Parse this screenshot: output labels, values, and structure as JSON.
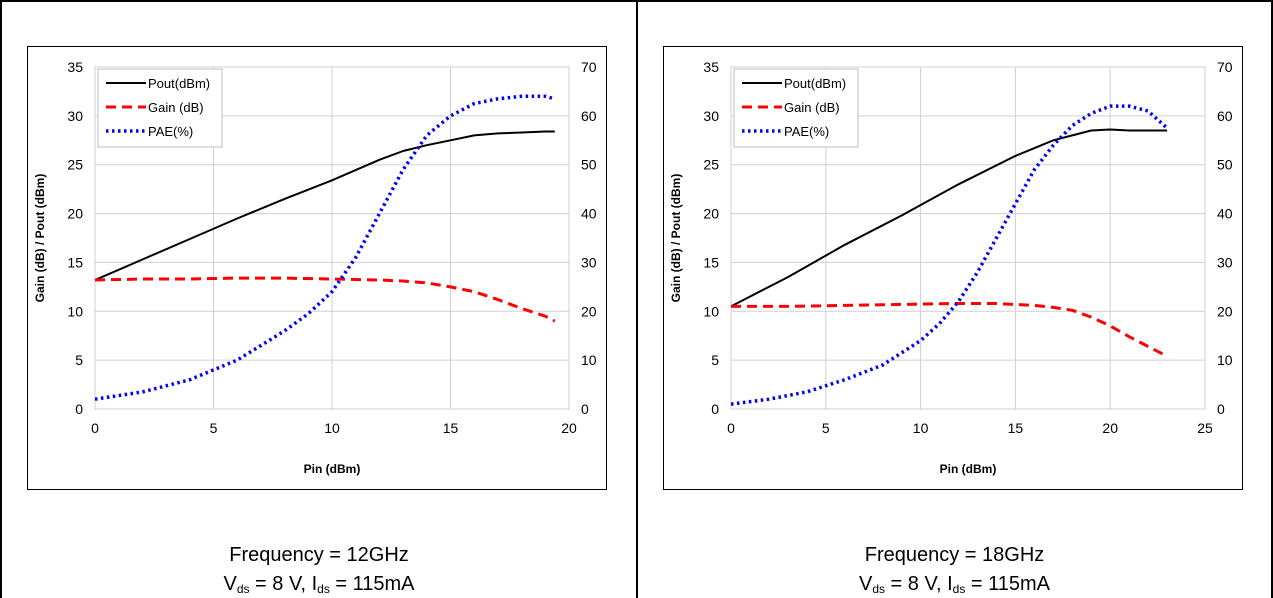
{
  "chart_data": [
    {
      "type": "line",
      "xlabel": "Pin (dBm)",
      "ylabel": "Gain (dB) / Pout (dBm)",
      "y2label": "PAE (%)",
      "xlim": [
        0,
        20
      ],
      "xticks": [
        0,
        5,
        10,
        15,
        20
      ],
      "ylim": [
        0,
        35
      ],
      "yticks": [
        0,
        5,
        10,
        15,
        20,
        25,
        30,
        35
      ],
      "y2lim": [
        0,
        70
      ],
      "y2ticks": [
        0,
        10,
        20,
        30,
        40,
        50,
        60,
        70
      ],
      "grid": true,
      "legend_position": "top-left",
      "series": [
        {
          "name": "Pout(dBm)",
          "axis": "left",
          "color": "#000000",
          "style": "solid",
          "x": [
            0,
            2,
            4,
            6,
            8,
            10,
            12,
            13,
            14,
            15,
            16,
            17,
            18,
            19,
            19.4
          ],
          "y": [
            13.2,
            15.3,
            17.4,
            19.5,
            21.5,
            23.4,
            25.5,
            26.4,
            27.0,
            27.5,
            28.0,
            28.2,
            28.3,
            28.4,
            28.4
          ]
        },
        {
          "name": "Gain (dB)",
          "axis": "left",
          "color": "#ff0000",
          "style": "dashed",
          "x": [
            0,
            2,
            4,
            6,
            8,
            10,
            12,
            13,
            14,
            15,
            16,
            17,
            18,
            19,
            19.4
          ],
          "y": [
            13.2,
            13.3,
            13.3,
            13.4,
            13.4,
            13.3,
            13.2,
            13.1,
            12.9,
            12.5,
            12.0,
            11.2,
            10.3,
            9.5,
            9.0
          ]
        },
        {
          "name": "PAE(%)",
          "axis": "right",
          "color": "#0000ff",
          "style": "dotted",
          "x": [
            0,
            2,
            4,
            6,
            7,
            8,
            9,
            10,
            11,
            12,
            13,
            14,
            15,
            16,
            17,
            18,
            19,
            19.4
          ],
          "y": [
            2,
            3.5,
            6,
            10,
            13,
            16,
            19.5,
            24,
            31,
            40,
            49,
            56,
            60,
            62.5,
            63.5,
            64,
            64,
            63.5
          ]
        }
      ]
    },
    {
      "type": "line",
      "xlabel": "Pin (dBm)",
      "ylabel": "Gain (dB) / Pout (dBm)",
      "y2label": "PAE (%)",
      "xlim": [
        0,
        25
      ],
      "xticks": [
        0,
        5,
        10,
        15,
        20,
        25
      ],
      "ylim": [
        0,
        35
      ],
      "yticks": [
        0,
        5,
        10,
        15,
        20,
        25,
        30,
        35
      ],
      "y2lim": [
        0,
        70
      ],
      "y2ticks": [
        0,
        10,
        20,
        30,
        40,
        50,
        60,
        70
      ],
      "grid": true,
      "legend_position": "top-left",
      "series": [
        {
          "name": "Pout(dBm)",
          "axis": "left",
          "color": "#000000",
          "style": "solid",
          "x": [
            0,
            3,
            6,
            9,
            12,
            15,
            17,
            18,
            19,
            20,
            21,
            22,
            23
          ],
          "y": [
            10.5,
            13.5,
            16.8,
            19.8,
            23.0,
            25.9,
            27.5,
            28.0,
            28.5,
            28.6,
            28.5,
            28.5,
            28.5
          ]
        },
        {
          "name": "Gain (dB)",
          "axis": "left",
          "color": "#ff0000",
          "style": "dashed",
          "x": [
            0,
            3,
            6,
            9,
            12,
            14,
            16,
            17,
            18,
            19,
            20,
            21,
            22,
            23
          ],
          "y": [
            10.5,
            10.5,
            10.6,
            10.7,
            10.8,
            10.8,
            10.6,
            10.4,
            10.1,
            9.4,
            8.5,
            7.4,
            6.4,
            5.4
          ]
        },
        {
          "name": "PAE(%)",
          "axis": "right",
          "color": "#0000ff",
          "style": "dotted",
          "x": [
            0,
            2,
            4,
            6,
            8,
            10,
            11,
            12,
            13,
            14,
            15,
            16,
            17,
            18,
            19,
            20,
            21,
            22,
            23
          ],
          "y": [
            1,
            2,
            3.5,
            6,
            9,
            14,
            17.5,
            22,
            28,
            35,
            42,
            49,
            54,
            58,
            60.5,
            62,
            62,
            61,
            57.5
          ]
        }
      ]
    }
  ],
  "captions": [
    {
      "frequency": "Frequency = 12GHz",
      "vds_symbol": "V",
      "vds_sub": "ds",
      "vds_value": " = 8 V, ",
      "ids_symbol": "I",
      "ids_sub": "ds",
      "ids_value": " = 115mA"
    },
    {
      "frequency": "Frequency = 18GHz",
      "vds_symbol": "V",
      "vds_sub": "ds",
      "vds_value": " = 8 V, ",
      "ids_symbol": "I",
      "ids_sub": "ds",
      "ids_value": " = 115mA"
    }
  ]
}
